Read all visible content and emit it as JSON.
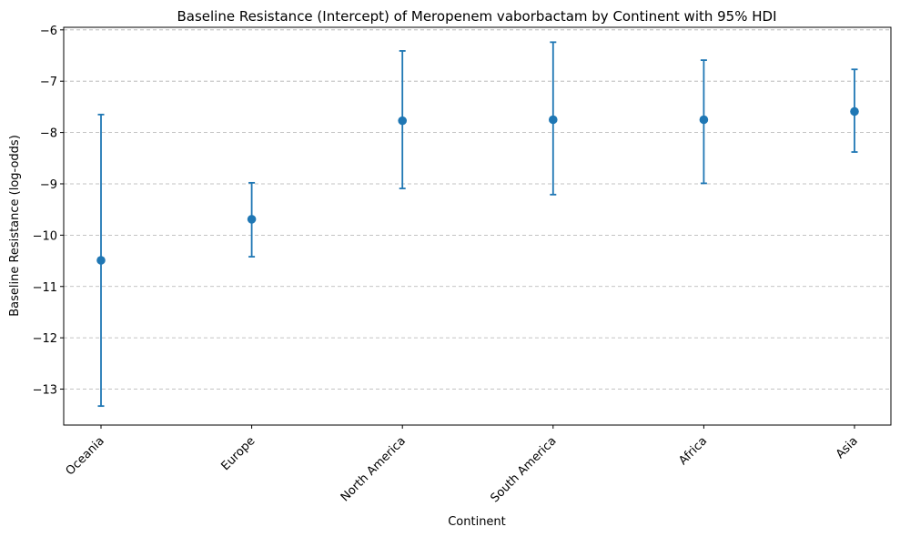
{
  "chart_data": {
    "type": "scatter",
    "title": "Baseline Resistance (Intercept) of Meropenem vaborbactam by Continent with 95% HDI",
    "xlabel": "Continent",
    "ylabel": "Baseline Resistance (log-odds)",
    "categories": [
      "Oceania",
      "Europe",
      "North America",
      "South America",
      "Africa",
      "Asia"
    ],
    "values": [
      -10.49,
      -9.69,
      -7.77,
      -7.75,
      -7.75,
      -7.59
    ],
    "hdi_lower": [
      -13.33,
      -10.42,
      -9.09,
      -9.21,
      -8.99,
      -8.38
    ],
    "hdi_upper": [
      -7.65,
      -8.98,
      -6.41,
      -6.24,
      -6.59,
      -6.77
    ],
    "ylim": [
      -13.7,
      -5.95
    ],
    "yticks": [
      -13,
      -12,
      -11,
      -10,
      -9,
      -8,
      -7,
      -6
    ],
    "ytick_labels": [
      "−13",
      "−12",
      "−11",
      "−10",
      "−9",
      "−8",
      "−7",
      "−6"
    ],
    "grid": "y",
    "legend": "none",
    "color": "#1f77b4"
  }
}
